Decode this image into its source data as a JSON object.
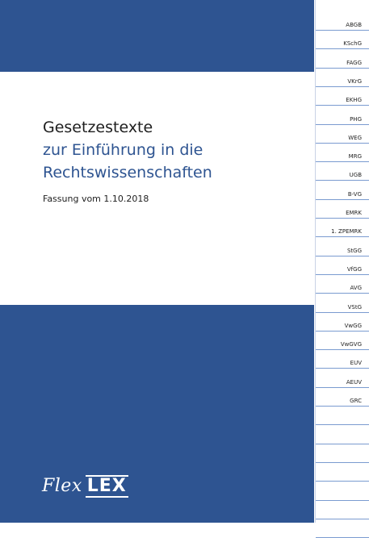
{
  "cover": {
    "title_line1": "Gesetzestexte",
    "title_line2": "zur Einführung in die",
    "title_line3": "Rechtswissenschaften",
    "edition": "Fassung vom 1.10.2018",
    "brand_word1": "Flex",
    "brand_word2": "LEX"
  },
  "colors": {
    "cover_blue": "#2e5491",
    "tab_line": "#7a9bd0"
  },
  "tabs": [
    "ABGB",
    "KSchG",
    "FAGG",
    "VKrG",
    "EKHG",
    "PHG",
    "WEG",
    "MRG",
    "UGB",
    "B-VG",
    "EMRK",
    "1. ZPEMRK",
    "StGG",
    "VfGG",
    "AVG",
    "VStG",
    "VwGG",
    "VwGVG",
    "EUV",
    "AEUV",
    "GRC",
    "",
    "",
    "",
    "",
    "",
    "",
    ""
  ]
}
